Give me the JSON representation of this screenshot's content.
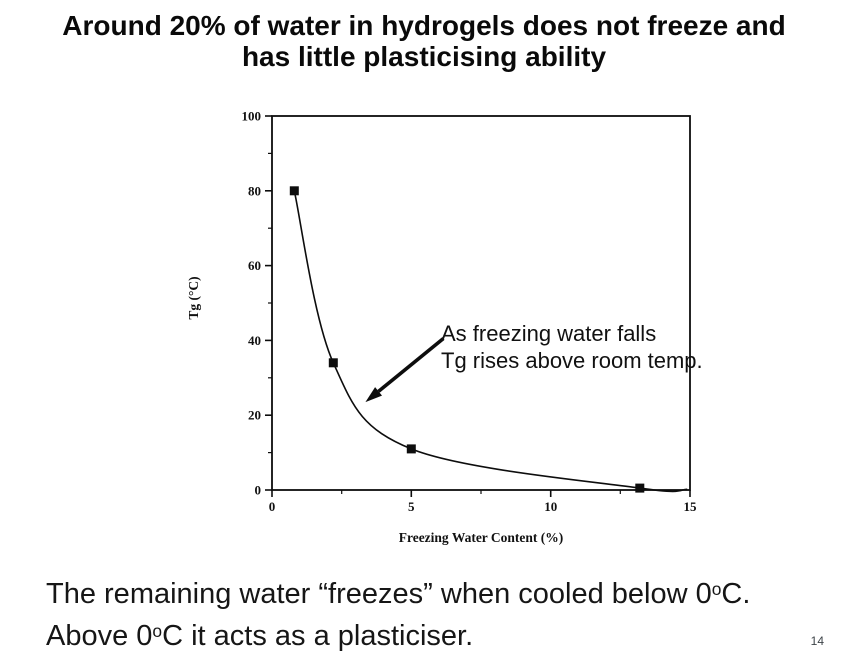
{
  "slide": {
    "title_line1": "Around 20% of water in hydrogels does not freeze and",
    "title_line2": "has little plasticising ability",
    "page_number": "14"
  },
  "annotation": {
    "line1": "As freezing water falls",
    "line2": "Tg rises above room temp."
  },
  "body_text": {
    "lines": [
      {
        "segments": [
          {
            "t": "The remaining water “freezes” when cooled below 0"
          },
          {
            "t": "o",
            "sup": true
          },
          {
            "t": "C."
          }
        ]
      },
      {
        "segments": [
          {
            "t": "Above 0"
          },
          {
            "t": "o",
            "sup": true
          },
          {
            "t": "C it acts as a plasticiser."
          }
        ]
      }
    ]
  },
  "chart_data": {
    "type": "scatter",
    "title": "",
    "xlabel": "Freezing Water Content (%)",
    "ylabel": "Tg (°C)",
    "xlim": [
      0,
      15
    ],
    "ylim": [
      0,
      100
    ],
    "x_ticks_major": [
      0,
      5,
      10,
      15
    ],
    "x_ticks_minor": [
      2.5,
      7.5,
      12.5
    ],
    "y_ticks_major": [
      0,
      20,
      40,
      60,
      80,
      100
    ],
    "y_ticks_minor": [
      10,
      30,
      50,
      70,
      90
    ],
    "grid": false,
    "legend": "none",
    "marker": "square",
    "points": [
      {
        "x": 0.8,
        "y": 80
      },
      {
        "x": 2.2,
        "y": 34
      },
      {
        "x": 5.0,
        "y": 11
      },
      {
        "x": 13.2,
        "y": 0.5
      }
    ],
    "curve_end": {
      "x": 14.9,
      "y": 0.2
    },
    "annotation_arrow": {
      "from_xy": [
        6.15,
        40.5
      ],
      "to_xy": [
        3.35,
        23.5
      ]
    },
    "colors": {
      "ink": "#0d0d0d"
    }
  }
}
